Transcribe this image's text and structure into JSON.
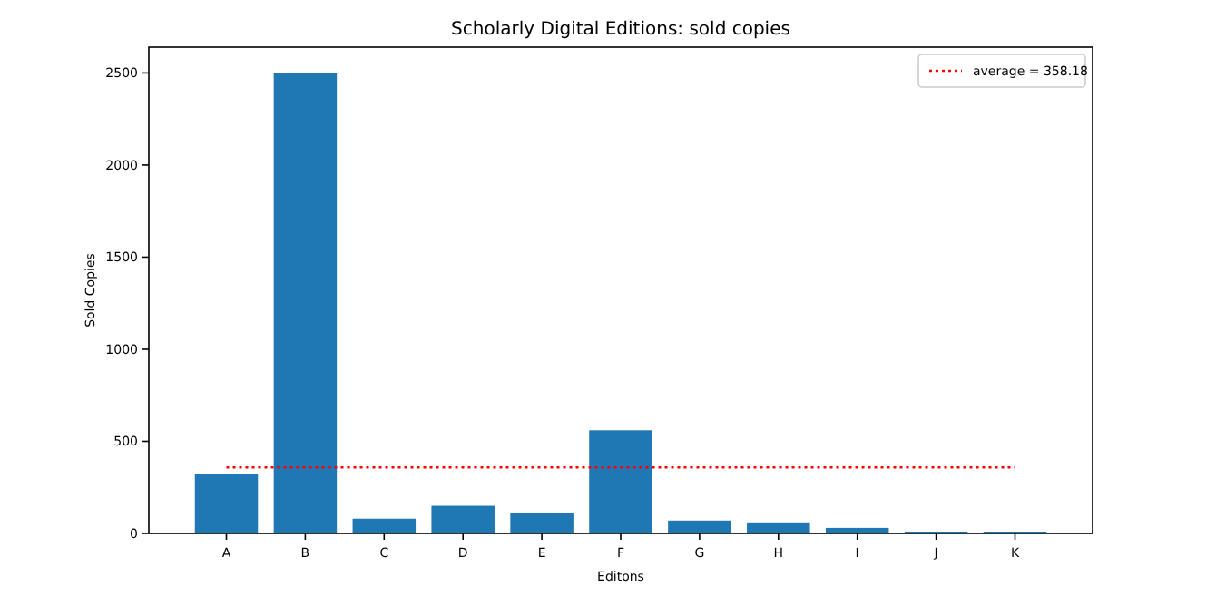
{
  "chart_data": {
    "type": "bar",
    "title": "Scholarly Digital Editions: sold copies",
    "xlabel": "Editons",
    "ylabel": "Sold Copies",
    "categories": [
      "A",
      "B",
      "C",
      "D",
      "E",
      "F",
      "G",
      "H",
      "I",
      "J",
      "K"
    ],
    "values": [
      320,
      2500,
      80,
      150,
      110,
      560,
      70,
      60,
      30,
      10,
      10
    ],
    "color": "#1f77b4",
    "ylim": [
      0,
      2640
    ],
    "yticks": [
      0,
      500,
      1000,
      1500,
      2000,
      2500
    ],
    "grid": false,
    "ref_lines": [
      {
        "axis": "y",
        "value": 358.18,
        "label": "average = 358.18",
        "color": "#ff0000",
        "line_style": "dotted"
      }
    ],
    "legend": "top right"
  }
}
